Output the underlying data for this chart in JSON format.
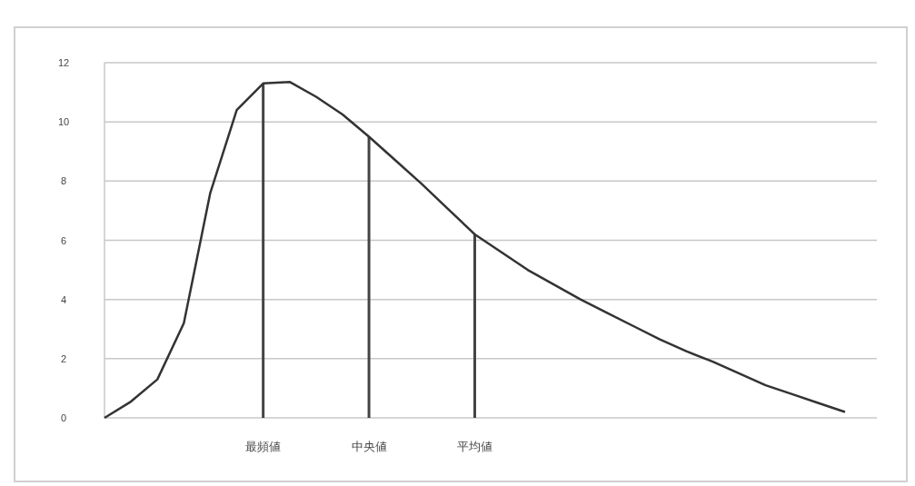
{
  "chart_data": {
    "type": "line",
    "categories": [
      null,
      null,
      null,
      null,
      null,
      null,
      "最頻値",
      null,
      null,
      null,
      "中央値",
      null,
      null,
      null,
      "平均値",
      null,
      null,
      null,
      null,
      null,
      null,
      null,
      null,
      null,
      null,
      null,
      null,
      null,
      null
    ],
    "series": [
      {
        "color": "#333333",
        "values": [
          0,
          0.55,
          1.3,
          3.2,
          7.6,
          10.4,
          11.3,
          11.35,
          10.85,
          10.25,
          9.5,
          8.7,
          7.9,
          7.05,
          6.2,
          5.6,
          5.0,
          4.5,
          4.0,
          3.55,
          3.1,
          2.65,
          2.25,
          1.9,
          1.5,
          1.1,
          0.8,
          0.5,
          0.2
        ]
      },
      {
        "type": "bar",
        "color": "#444444",
        "values": [
          null,
          null,
          null,
          null,
          null,
          null,
          11.3,
          null,
          null,
          null,
          9.5,
          null,
          null,
          null,
          6.2,
          null,
          null,
          null,
          null,
          null,
          null,
          null,
          null,
          null,
          null,
          null,
          null,
          null,
          null
        ]
      }
    ],
    "ylim": [
      0,
      12
    ],
    "yticks": [
      0,
      2,
      4,
      6,
      8,
      10,
      12
    ],
    "grid": "y",
    "marker": "none",
    "line_style": "solid"
  }
}
